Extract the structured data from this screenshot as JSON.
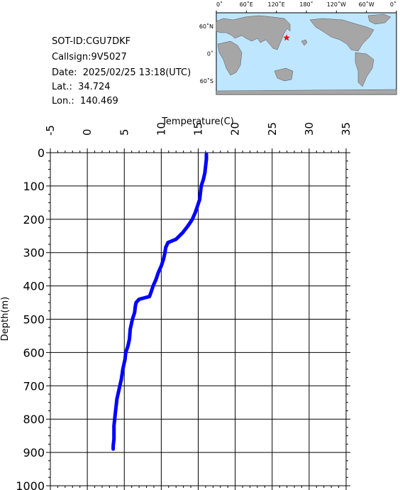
{
  "info": {
    "sot_id": "SOT-ID:CGU7DKF",
    "callsign": "Callsign:9V5027",
    "date": "Date:  2025/02/25 13:18(UTC)",
    "lat": "Lat.:  34.724",
    "lon": "Lon.:  140.469"
  },
  "map": {
    "top_labels": [
      "0˚",
      "60˚E",
      "120˚E",
      "180˚",
      "120˚W",
      "60˚W",
      "0˚"
    ],
    "left_labels": [
      "60˚N",
      "0˚",
      "60˚S"
    ],
    "ocean_color": "#bfe6ff",
    "land_color": "#a6a6a6",
    "marker": {
      "lat": 34.724,
      "lon": 140.469,
      "symbol": "star",
      "color": "#ff0000"
    }
  },
  "chart_data": {
    "type": "line",
    "xlabel": "Temperature(C)",
    "ylabel": "Depth(m)",
    "xlim": [
      -5,
      35
    ],
    "ylim": [
      1000,
      0
    ],
    "x_ticks": [
      "-5",
      "0",
      "5",
      "10",
      "15",
      "20",
      "25",
      "30",
      "35"
    ],
    "y_ticks": [
      "0",
      "100",
      "200",
      "300",
      "400",
      "500",
      "600",
      "700",
      "800",
      "900",
      "1000"
    ],
    "line_color": "#0000ff",
    "grid": true,
    "series": [
      {
        "points": [
          [
            16.1,
            5
          ],
          [
            16.1,
            20
          ],
          [
            16.0,
            40
          ],
          [
            15.9,
            60
          ],
          [
            15.7,
            80
          ],
          [
            15.4,
            100
          ],
          [
            15.3,
            120
          ],
          [
            15.2,
            140
          ],
          [
            14.9,
            160
          ],
          [
            14.6,
            180
          ],
          [
            14.2,
            200
          ],
          [
            13.6,
            220
          ],
          [
            12.9,
            240
          ],
          [
            12.0,
            260
          ],
          [
            10.9,
            270
          ],
          [
            10.6,
            285
          ],
          [
            10.5,
            300
          ],
          [
            10.3,
            320
          ],
          [
            10.0,
            340
          ],
          [
            9.6,
            360
          ],
          [
            9.3,
            380
          ],
          [
            8.9,
            400
          ],
          [
            8.6,
            420
          ],
          [
            8.4,
            432
          ],
          [
            7.7,
            436
          ],
          [
            7.0,
            440
          ],
          [
            6.6,
            450
          ],
          [
            6.5,
            460
          ],
          [
            6.4,
            480
          ],
          [
            6.1,
            500
          ],
          [
            5.8,
            530
          ],
          [
            5.7,
            560
          ],
          [
            5.5,
            580
          ],
          [
            5.2,
            600
          ],
          [
            5.1,
            620
          ],
          [
            4.8,
            650
          ],
          [
            4.6,
            680
          ],
          [
            4.4,
            700
          ],
          [
            4.2,
            720
          ],
          [
            4.0,
            740
          ],
          [
            3.9,
            760
          ],
          [
            3.8,
            780
          ],
          [
            3.7,
            800
          ],
          [
            3.6,
            820
          ],
          [
            3.6,
            840
          ],
          [
            3.6,
            860
          ],
          [
            3.5,
            880
          ],
          [
            3.5,
            890
          ]
        ]
      }
    ]
  }
}
